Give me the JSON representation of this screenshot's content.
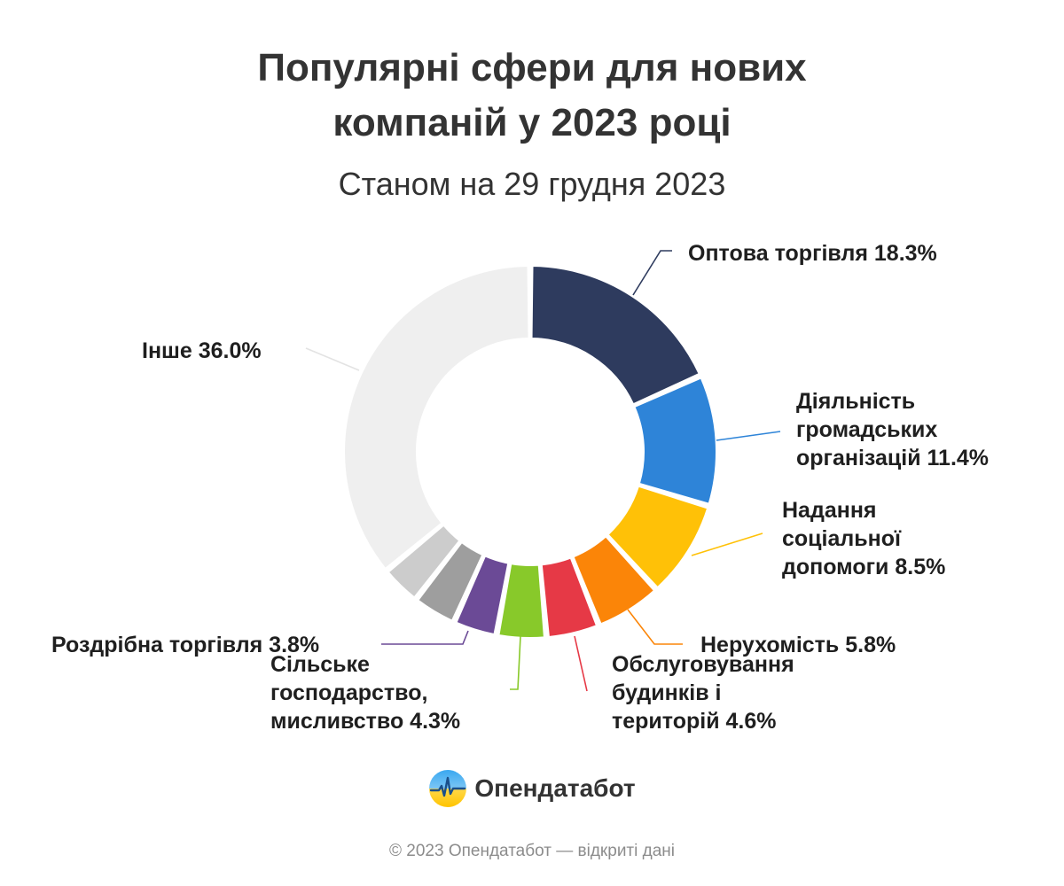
{
  "header": {
    "title_lines": [
      "Популярні сфери для нових",
      "компаній у 2023 році"
    ],
    "subtitle": "Станом на 29 грудня 2023"
  },
  "chart_data": {
    "type": "pie",
    "subtype": "donut",
    "slices": [
      {
        "label_lines": [
          "Оптова торгівля 18.3%"
        ],
        "value": 18.3,
        "color": "#2e3b5e"
      },
      {
        "label_lines": [
          "Діяльність",
          "громадських",
          "організацій 11.4%"
        ],
        "value": 11.4,
        "color": "#2e84d8"
      },
      {
        "label_lines": [
          "Надання",
          "соціальної",
          "допомоги 8.5%"
        ],
        "value": 8.5,
        "color": "#ffc107"
      },
      {
        "label_lines": [
          "Нерухомість 5.8%"
        ],
        "value": 5.8,
        "color": "#fb8508"
      },
      {
        "label_lines": [
          "Обслуговування",
          "будинків і",
          "територій 4.6%"
        ],
        "value": 4.6,
        "color": "#e63946"
      },
      {
        "label_lines": [
          "Сільське",
          "господарство,",
          "мисливство 4.3%"
        ],
        "value": 4.3,
        "color": "#88c92a"
      },
      {
        "label_lines": [
          "Роздрібна торгівля 3.8%"
        ],
        "value": 3.8,
        "color": "#6b4a96"
      },
      {
        "label_lines": [],
        "value": 3.8,
        "color": "#9e9e9e"
      },
      {
        "label_lines": [],
        "value": 3.5,
        "color": "#cccccc"
      },
      {
        "label_lines": [
          "Інше 36.0%"
        ],
        "value": 36.0,
        "color": "#efefef"
      }
    ]
  },
  "brand": {
    "name": "Опендатабот",
    "logo_icon": "opendatabot-logo-icon"
  },
  "footer": {
    "text": "© 2023 Опендатабот — відкриті дані"
  }
}
